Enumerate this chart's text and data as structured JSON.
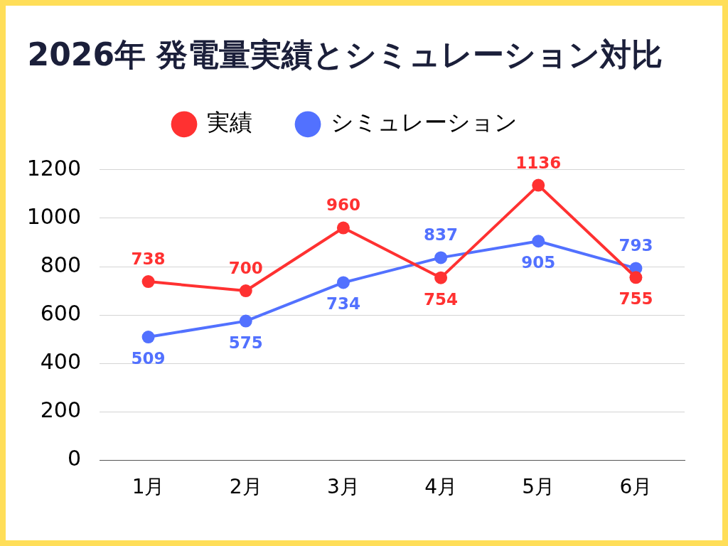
{
  "chart_data": {
    "type": "line",
    "title": "2026年 発電量実績とシミュレーション対比",
    "categories": [
      "1月",
      "2月",
      "3月",
      "4月",
      "5月",
      "6月"
    ],
    "series": [
      {
        "name": "実績",
        "color": "#ff3131",
        "values": [
          738,
          700,
          960,
          754,
          1136,
          755
        ]
      },
      {
        "name": "シミュレーション",
        "color": "#5271ff",
        "values": [
          509,
          575,
          734,
          837,
          905,
          793
        ]
      }
    ],
    "ylim": [
      0,
      1200
    ],
    "yticks": [
      0,
      200,
      400,
      600,
      800,
      1000,
      1200
    ],
    "grid": "y",
    "legend": "top",
    "marker": "circle",
    "data_labels": true
  }
}
